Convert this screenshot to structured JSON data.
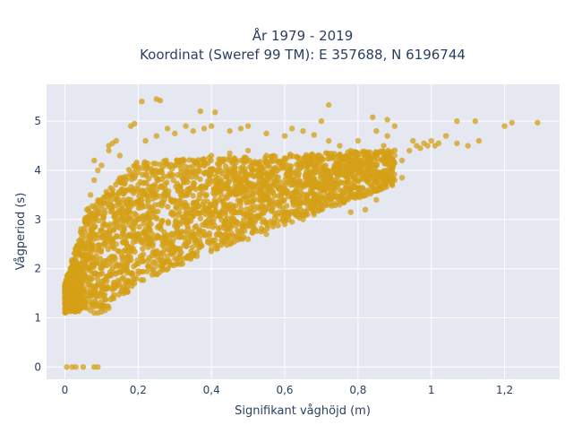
{
  "chart_data": {
    "type": "scatter",
    "title_lines": [
      "År 1979 - 2019",
      "Koordinat (Sweref 99 TM): E 357688, N 6196744"
    ],
    "xlabel": "Signifikant våghöjd (m)",
    "ylabel": "Vågperiod (s)",
    "xlim": [
      -0.05,
      1.35
    ],
    "ylim": [
      -0.25,
      5.75
    ],
    "xticks": [
      0,
      0.2,
      0.4,
      0.6,
      0.8,
      1,
      1.2
    ],
    "xtick_labels": [
      "0",
      "0,2",
      "0,4",
      "0,6",
      "0,8",
      "1",
      "1,2"
    ],
    "yticks": [
      0,
      1,
      2,
      3,
      4,
      5
    ],
    "ytick_labels": [
      "0",
      "1",
      "2",
      "3",
      "4",
      "5"
    ],
    "grid": true,
    "colors": {
      "marker": "#d4a017",
      "plot_bg": "#e5e8f0",
      "grid": "#ffffff",
      "text": "#2a3f5f"
    },
    "series": [
      {
        "marker_color": "#d4a017",
        "points": [
          [
            0.005,
            0.0
          ],
          [
            0.02,
            0.0
          ],
          [
            0.03,
            0.0
          ],
          [
            0.05,
            0.0
          ],
          [
            0.08,
            0.0
          ],
          [
            0.09,
            0.0
          ],
          [
            0.0,
            1.5
          ],
          [
            0.0,
            1.6
          ],
          [
            0.01,
            1.45
          ],
          [
            0.02,
            1.7
          ],
          [
            0.03,
            1.55
          ],
          [
            0.04,
            1.4
          ],
          [
            0.05,
            1.3
          ],
          [
            0.06,
            1.2
          ],
          [
            0.07,
            1.15
          ],
          [
            0.08,
            1.1
          ],
          [
            0.09,
            1.1
          ],
          [
            0.1,
            1.12
          ],
          [
            0.11,
            1.15
          ],
          [
            0.12,
            1.2
          ],
          [
            0.05,
            2.0
          ],
          [
            0.06,
            2.4
          ],
          [
            0.07,
            2.8
          ],
          [
            0.06,
            3.2
          ],
          [
            0.07,
            3.5
          ],
          [
            0.08,
            3.8
          ],
          [
            0.09,
            4.0
          ],
          [
            0.08,
            4.2
          ],
          [
            0.1,
            4.1
          ],
          [
            0.12,
            4.5
          ],
          [
            0.13,
            4.55
          ],
          [
            0.14,
            4.6
          ],
          [
            0.12,
            4.4
          ],
          [
            0.15,
            4.3
          ],
          [
            0.18,
            4.9
          ],
          [
            0.19,
            4.95
          ],
          [
            0.21,
            5.4
          ],
          [
            0.25,
            5.45
          ],
          [
            0.26,
            5.42
          ],
          [
            0.37,
            5.2
          ],
          [
            0.41,
            5.18
          ],
          [
            0.22,
            4.6
          ],
          [
            0.25,
            4.7
          ],
          [
            0.28,
            4.85
          ],
          [
            0.3,
            4.75
          ],
          [
            0.33,
            4.9
          ],
          [
            0.35,
            4.8
          ],
          [
            0.38,
            4.85
          ],
          [
            0.4,
            4.9
          ],
          [
            0.45,
            4.8
          ],
          [
            0.48,
            4.85
          ],
          [
            0.5,
            4.9
          ],
          [
            0.55,
            4.75
          ],
          [
            0.6,
            4.7
          ],
          [
            0.62,
            4.85
          ],
          [
            0.65,
            4.8
          ],
          [
            0.68,
            4.72
          ],
          [
            0.7,
            5.0
          ],
          [
            0.72,
            4.6
          ],
          [
            0.75,
            4.5
          ],
          [
            0.78,
            4.4
          ],
          [
            0.8,
            4.6
          ],
          [
            0.82,
            4.35
          ],
          [
            0.85,
            4.8
          ],
          [
            0.87,
            4.5
          ],
          [
            0.88,
            4.7
          ],
          [
            0.9,
            4.9
          ],
          [
            0.9,
            4.3
          ],
          [
            0.92,
            4.2
          ],
          [
            0.94,
            4.4
          ],
          [
            0.72,
            5.33
          ],
          [
            0.84,
            5.08
          ],
          [
            0.88,
            5.03
          ],
          [
            0.95,
            4.6
          ],
          [
            0.96,
            4.5
          ],
          [
            0.97,
            4.45
          ],
          [
            0.98,
            4.55
          ],
          [
            0.99,
            4.5
          ],
          [
            1.0,
            4.6
          ],
          [
            1.01,
            4.5
          ],
          [
            1.02,
            4.55
          ],
          [
            1.04,
            4.7
          ],
          [
            1.07,
            4.55
          ],
          [
            1.1,
            4.5
          ],
          [
            1.13,
            4.6
          ],
          [
            1.07,
            5.0
          ],
          [
            1.12,
            5.0
          ],
          [
            1.2,
            4.9
          ],
          [
            1.22,
            4.97
          ],
          [
            1.29,
            4.97
          ],
          [
            0.75,
            3.3
          ],
          [
            0.8,
            3.5
          ],
          [
            0.78,
            3.15
          ],
          [
            0.82,
            3.2
          ],
          [
            0.85,
            3.4
          ],
          [
            0.87,
            3.7
          ],
          [
            0.9,
            3.8
          ],
          [
            0.92,
            3.85
          ],
          [
            0.85,
            3.75
          ],
          [
            0.7,
            3.2
          ],
          [
            0.72,
            3.3
          ],
          [
            0.68,
            3.1
          ],
          [
            0.6,
            2.9
          ],
          [
            0.62,
            2.95
          ],
          [
            0.65,
            3.0
          ],
          [
            0.55,
            2.7
          ],
          [
            0.5,
            2.6
          ],
          [
            0.45,
            2.5
          ],
          [
            0.4,
            2.4
          ],
          [
            0.35,
            2.3
          ],
          [
            0.3,
            2.2
          ],
          [
            0.25,
            2.05
          ],
          [
            0.2,
            1.9
          ],
          [
            0.18,
            1.75
          ],
          [
            0.15,
            1.65
          ],
          [
            0.13,
            1.6
          ],
          [
            0.14,
            2.5
          ],
          [
            0.16,
            3.0
          ],
          [
            0.18,
            3.4
          ],
          [
            0.2,
            3.7
          ],
          [
            0.22,
            3.9
          ],
          [
            0.25,
            4.0
          ],
          [
            0.3,
            4.1
          ],
          [
            0.35,
            4.2
          ],
          [
            0.4,
            4.3
          ],
          [
            0.45,
            4.35
          ],
          [
            0.5,
            4.4
          ],
          [
            0.55,
            4.3
          ],
          [
            0.6,
            4.25
          ],
          [
            0.65,
            4.2
          ],
          [
            0.7,
            4.1
          ],
          [
            0.75,
            4.0
          ],
          [
            0.8,
            4.05
          ],
          [
            0.85,
            4.1
          ],
          [
            0.88,
            4.2
          ],
          [
            0.63,
            3.1
          ],
          [
            0.66,
            3.4
          ],
          [
            0.58,
            3.3
          ]
        ]
      }
    ]
  }
}
